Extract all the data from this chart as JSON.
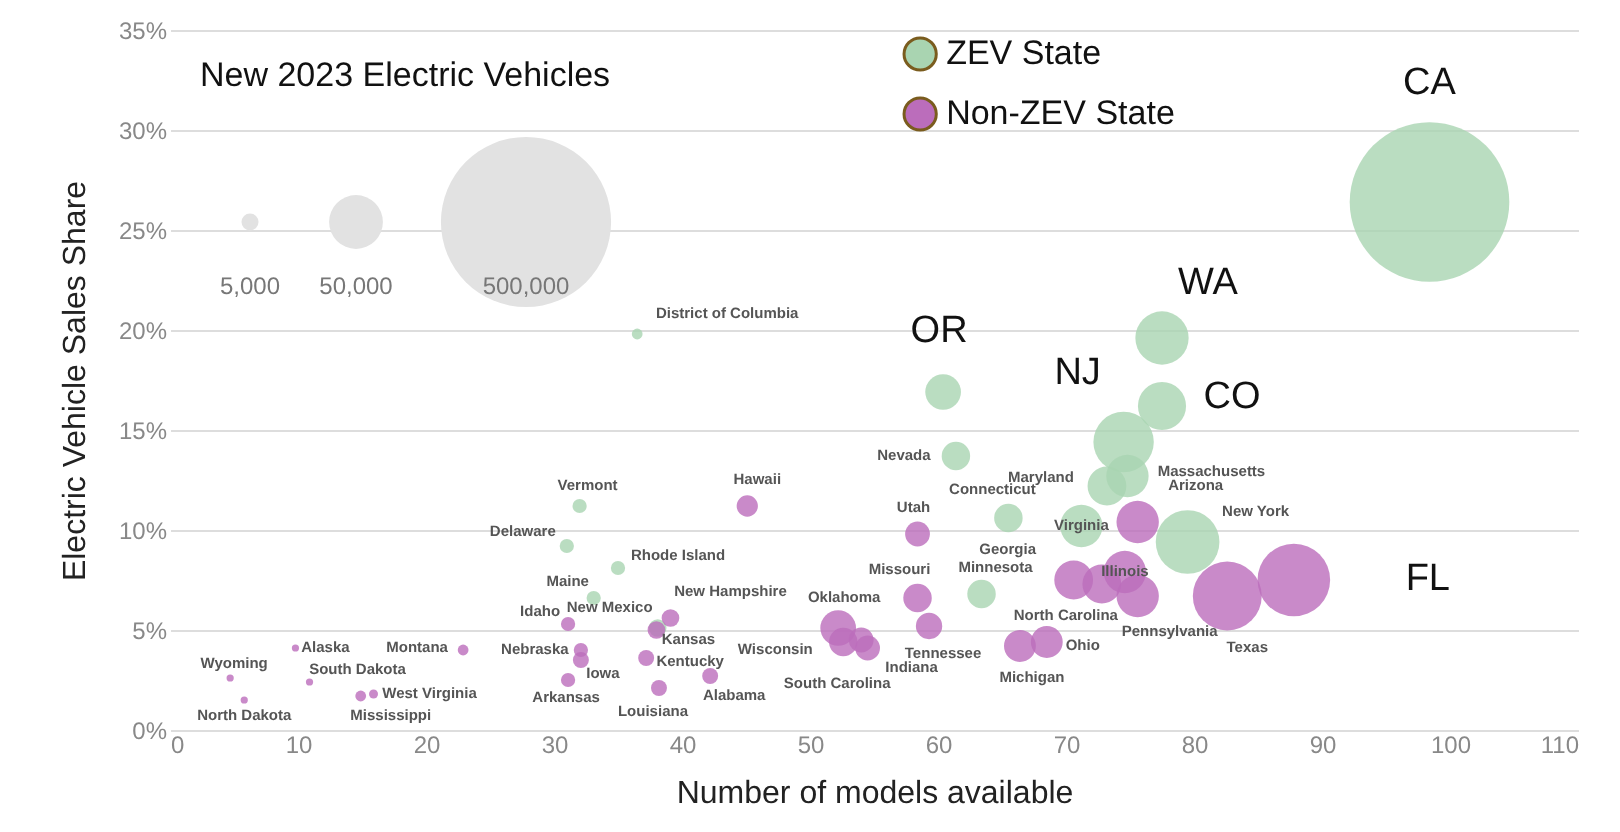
{
  "chart_data": {
    "type": "bubble",
    "xlabel": "Number of models available",
    "ylabel": "Electric Vehicle Sales Share",
    "legend_title": "New 2023 Electric Vehicles",
    "size_legend": [
      {
        "value": 5000,
        "label": "5,000"
      },
      {
        "value": 50000,
        "label": "50,000"
      },
      {
        "value": 500000,
        "label": "500,000"
      }
    ],
    "xlim": [
      0,
      110
    ],
    "xticks": [
      0,
      10,
      20,
      30,
      40,
      50,
      60,
      70,
      80,
      90,
      100,
      110
    ],
    "ylim": [
      0,
      35
    ],
    "yticks": [
      {
        "value": 0,
        "label": "0%"
      },
      {
        "value": 5,
        "label": "5%"
      },
      {
        "value": 10,
        "label": "10%"
      },
      {
        "value": 15,
        "label": "15%"
      },
      {
        "value": 20,
        "label": "20%"
      },
      {
        "value": 25,
        "label": "25%"
      },
      {
        "value": 30,
        "label": "30%"
      },
      {
        "value": 35,
        "label": "35%"
      }
    ],
    "grid": "y",
    "legend": "top",
    "marker": "circle",
    "series": [
      {
        "name": "ZEV State",
        "color": "#a9d4b1",
        "x": [
          98.4,
          77.5,
          60.4,
          74.5,
          77.5,
          73.2,
          74.8,
          71.2,
          65.5,
          79.5,
          61.4,
          63.4,
          36.5,
          32.0,
          31.0,
          35.0,
          33.1,
          38.1
        ],
        "values": [
          26.4,
          19.6,
          16.9,
          14.4,
          16.2,
          12.2,
          12.7,
          10.2,
          10.6,
          9.4,
          13.7,
          6.8,
          19.8,
          11.2,
          9.2,
          8.1,
          6.6,
          5.1
        ],
        "sizes": [
          440000,
          49000,
          22000,
          63000,
          40000,
          26000,
          31000,
          31000,
          14000,
          70000,
          14000,
          14000,
          2000,
          3500,
          3500,
          3500,
          3500,
          5400
        ]
      },
      {
        "name": "Non-ZEV State",
        "color": "#bb6dbb",
        "x": [
          87.8,
          82.6,
          75.6,
          70.6,
          72.8,
          74.6,
          75.6,
          68.5,
          66.4,
          58.4,
          58.4,
          59.3,
          52.2,
          52.6,
          54.5,
          54.0,
          45.1,
          39.1,
          38.0,
          31.1,
          32.1,
          32.1,
          31.1,
          37.2,
          38.2,
          42.2,
          22.9,
          9.8,
          4.7,
          10.9,
          5.8,
          14.9,
          15.9
        ],
        "values": [
          7.5,
          6.7,
          10.4,
          7.5,
          7.3,
          7.9,
          6.7,
          4.4,
          4.2,
          9.8,
          6.6,
          5.2,
          5.1,
          4.4,
          4.1,
          4.5,
          11.2,
          5.6,
          5.0,
          5.3,
          4.0,
          3.5,
          2.5,
          3.6,
          2.1,
          2.7,
          4.0,
          4.1,
          2.6,
          2.4,
          1.5,
          1.7,
          1.8
        ],
        "sizes": [
          91000,
          82000,
          31000,
          26000,
          26000,
          31000,
          31000,
          17500,
          17500,
          10600,
          14000,
          12000,
          22000,
          14000,
          10600,
          10600,
          7800,
          5400,
          5400,
          3500,
          3500,
          4400,
          3500,
          4400,
          4400,
          4400,
          2000,
          900,
          900,
          900,
          900,
          2000,
          1400
        ]
      }
    ],
    "annotations": [
      {
        "text": "CA",
        "x": 98.4,
        "y": 26.4
      },
      {
        "text": "WA",
        "x": 77.5,
        "y": 19.6
      },
      {
        "text": "OR",
        "x": 60.4,
        "y": 16.9
      },
      {
        "text": "NJ",
        "x": 74.5,
        "y": 14.4
      },
      {
        "text": "CO",
        "x": 77.5,
        "y": 16.2
      },
      {
        "text": "FL",
        "x": 87.8,
        "y": 7.5
      },
      {
        "text": "Maryland",
        "x": 73.2,
        "y": 12.2
      },
      {
        "text": "Massachusetts",
        "x": 74.8,
        "y": 12.7
      },
      {
        "text": "Virginia",
        "x": 71.2,
        "y": 10.2
      },
      {
        "text": "Connecticut",
        "x": 65.5,
        "y": 10.6
      },
      {
        "text": "Arizona",
        "x": 75.6,
        "y": 10.4
      },
      {
        "text": "New York",
        "x": 79.5,
        "y": 9.4
      },
      {
        "text": "Nevada",
        "x": 61.4,
        "y": 13.7
      },
      {
        "text": "Utah",
        "x": 58.4,
        "y": 9.8
      },
      {
        "text": "Georgia",
        "x": 70.6,
        "y": 7.5
      },
      {
        "text": "Minnesota",
        "x": 63.4,
        "y": 6.8
      },
      {
        "text": "Missouri",
        "x": 58.4,
        "y": 6.6
      },
      {
        "text": "Oklahoma",
        "x": 52.2,
        "y": 5.1
      },
      {
        "text": "Tennessee",
        "x": 59.3,
        "y": 5.2
      },
      {
        "text": "Wisconsin",
        "x": 52.6,
        "y": 4.4
      },
      {
        "text": "Indiana",
        "x": 54.5,
        "y": 4.1
      },
      {
        "text": "South Carolina",
        "x": 54.0,
        "y": 4.5
      },
      {
        "text": "Ohio",
        "x": 68.5,
        "y": 4.4
      },
      {
        "text": "Michigan",
        "x": 66.4,
        "y": 4.2
      },
      {
        "text": "Illinois",
        "x": 74.6,
        "y": 7.9
      },
      {
        "text": "North Carolina",
        "x": 72.8,
        "y": 7.3
      },
      {
        "text": "Pennsylvania",
        "x": 75.6,
        "y": 6.7
      },
      {
        "text": "Texas",
        "x": 82.6,
        "y": 6.7
      },
      {
        "text": "Hawaii",
        "x": 45.1,
        "y": 11.2
      },
      {
        "text": "District of Columbia",
        "x": 36.5,
        "y": 19.8
      },
      {
        "text": "Vermont",
        "x": 32.0,
        "y": 11.2
      },
      {
        "text": "Delaware",
        "x": 31.0,
        "y": 9.2
      },
      {
        "text": "Rhode Island",
        "x": 35.0,
        "y": 8.1
      },
      {
        "text": "Maine",
        "x": 33.1,
        "y": 6.6
      },
      {
        "text": "New Mexico",
        "x": 38.1,
        "y": 5.1
      },
      {
        "text": "New Hampshire",
        "x": 39.1,
        "y": 5.6
      },
      {
        "text": "Kansas",
        "x": 38.0,
        "y": 5.0
      },
      {
        "text": "Idaho",
        "x": 31.1,
        "y": 5.3
      },
      {
        "text": "Nebraska",
        "x": 32.1,
        "y": 4.0
      },
      {
        "text": "Iowa",
        "x": 32.1,
        "y": 3.5
      },
      {
        "text": "Arkansas",
        "x": 31.1,
        "y": 2.5
      },
      {
        "text": "Kentucky",
        "x": 37.2,
        "y": 3.6
      },
      {
        "text": "Louisiana",
        "x": 38.2,
        "y": 2.1
      },
      {
        "text": "Alabama",
        "x": 42.2,
        "y": 2.7
      },
      {
        "text": "Montana",
        "x": 22.9,
        "y": 4.0
      },
      {
        "text": "Alaska",
        "x": 9.8,
        "y": 4.1
      },
      {
        "text": "Wyoming",
        "x": 4.7,
        "y": 2.6
      },
      {
        "text": "South Dakota",
        "x": 10.9,
        "y": 2.4
      },
      {
        "text": "North Dakota",
        "x": 5.8,
        "y": 1.5
      },
      {
        "text": "Mississippi",
        "x": 14.9,
        "y": 1.7
      },
      {
        "text": "West Virginia",
        "x": 15.9,
        "y": 1.8
      }
    ]
  }
}
